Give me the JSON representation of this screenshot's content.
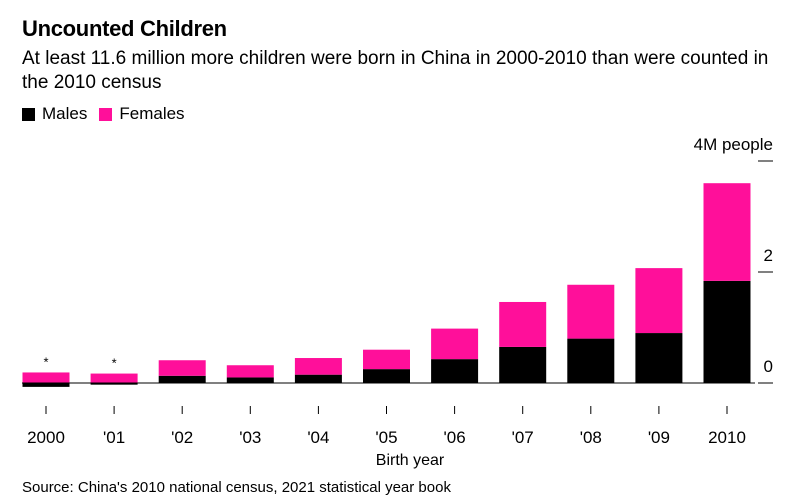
{
  "header": {
    "title": "Uncounted Children",
    "subtitle": "At least 11.6 million more children were born in China in 2000-2010 than were counted in the 2010 census"
  },
  "legend": {
    "males": {
      "label": "Males",
      "color": "#000000"
    },
    "females": {
      "label": "Females",
      "color": "#ff0f9a"
    }
  },
  "footer": {
    "source": "Source: China's 2010 national census, 2021 statistical year book"
  },
  "chart_data": {
    "type": "bar",
    "stacked": true,
    "categories": [
      "2000",
      "'01",
      "'02",
      "'03",
      "'04",
      "'05",
      "'06",
      "'07",
      "'08",
      "'09",
      "2010"
    ],
    "series": [
      {
        "name": "Males",
        "color": "#000000",
        "values": [
          -0.07,
          -0.03,
          0.13,
          0.1,
          0.15,
          0.25,
          0.43,
          0.65,
          0.8,
          0.9,
          1.84
        ]
      },
      {
        "name": "Females",
        "color": "#ff0f9a",
        "values": [
          0.19,
          0.17,
          0.28,
          0.22,
          0.3,
          0.35,
          0.55,
          0.81,
          0.97,
          1.17,
          1.76
        ]
      }
    ],
    "bar_notes": [
      "*",
      "*",
      "",
      "",
      "",
      "",
      "",
      "",
      "",
      "",
      ""
    ],
    "xlabel": "Birth year",
    "ylabel": "",
    "y_axis_position": "right",
    "yticks": [
      0,
      2,
      4
    ],
    "ytick_labels": [
      "0",
      "2",
      "4M people"
    ],
    "ylim": [
      -0.15,
      4.1
    ],
    "grid": false,
    "legend_position": "top-left"
  }
}
